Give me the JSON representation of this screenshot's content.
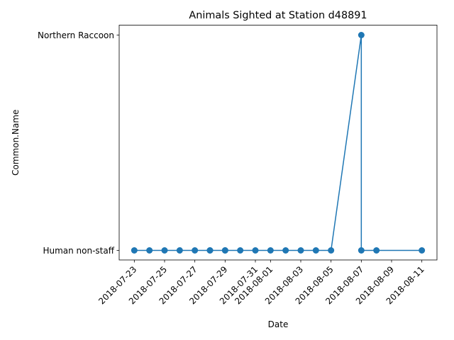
{
  "chart_data": {
    "type": "line",
    "title": "Animals Sighted at Station d48891",
    "xlabel": "Date",
    "ylabel": "Common.Name",
    "categories": [
      "Human non-staff",
      "Northern Raccoon"
    ],
    "x_ticks": [
      "2018-07-23",
      "2018-07-25",
      "2018-07-27",
      "2018-07-29",
      "2018-07-31",
      "2018-08-01",
      "2018-08-03",
      "2018-08-05",
      "2018-08-07",
      "2018-08-09",
      "2018-08-11"
    ],
    "xlim": [
      "2018-07-22",
      "2018-08-12"
    ],
    "series": [
      {
        "color": "#1f77b4",
        "points": [
          {
            "x": "2018-07-23",
            "y": "Human non-staff"
          },
          {
            "x": "2018-07-24",
            "y": "Human non-staff"
          },
          {
            "x": "2018-07-25",
            "y": "Human non-staff"
          },
          {
            "x": "2018-07-26",
            "y": "Human non-staff"
          },
          {
            "x": "2018-07-27",
            "y": "Human non-staff"
          },
          {
            "x": "2018-07-28",
            "y": "Human non-staff"
          },
          {
            "x": "2018-07-28",
            "y": "Human non-staff"
          },
          {
            "x": "2018-07-29",
            "y": "Human non-staff"
          },
          {
            "x": "2018-07-29",
            "y": "Human non-staff"
          },
          {
            "x": "2018-07-30",
            "y": "Human non-staff"
          },
          {
            "x": "2018-07-31",
            "y": "Human non-staff"
          },
          {
            "x": "2018-08-01",
            "y": "Human non-staff"
          },
          {
            "x": "2018-08-02",
            "y": "Human non-staff"
          },
          {
            "x": "2018-08-03",
            "y": "Human non-staff"
          },
          {
            "x": "2018-08-04",
            "y": "Human non-staff"
          },
          {
            "x": "2018-08-05",
            "y": "Human non-staff"
          },
          {
            "x": "2018-08-07",
            "y": "Northern Raccoon"
          },
          {
            "x": "2018-08-07",
            "y": "Human non-staff"
          },
          {
            "x": "2018-08-08",
            "y": "Human non-staff"
          },
          {
            "x": "2018-08-11",
            "y": "Human non-staff"
          }
        ]
      }
    ],
    "grid": false,
    "legend": "none"
  }
}
